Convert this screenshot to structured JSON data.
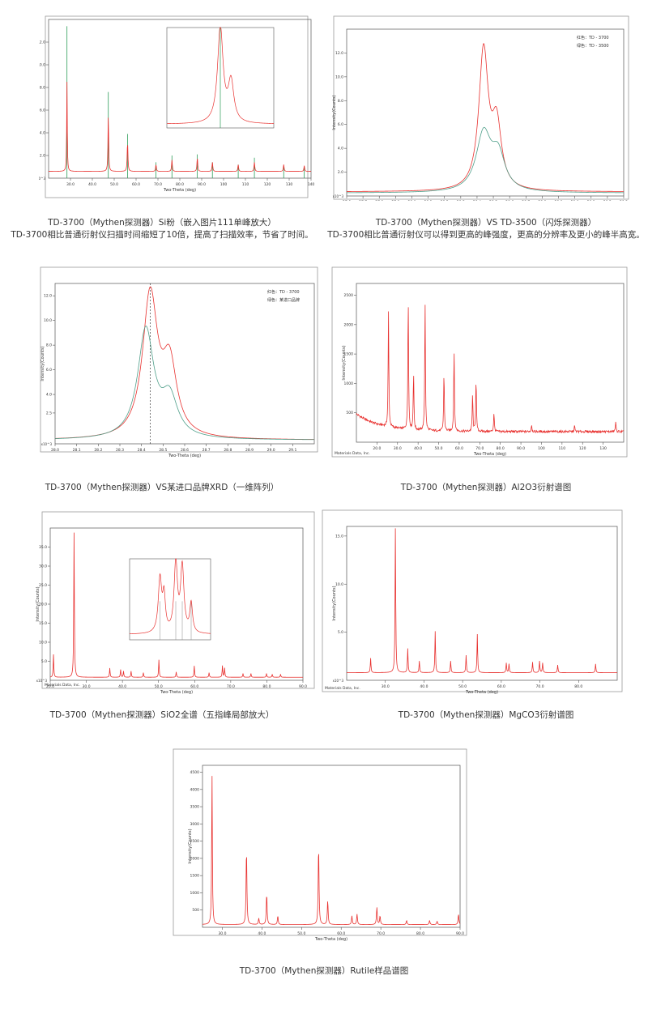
{
  "captions": {
    "p1": {
      "line1": "TD-3700（Mythen探测器）Si粉（嵌入图片111单峰放大）",
      "line2": "TD-3700相比普通衍射仪扫描时间缩短了10倍，提高了扫描效率，节省了时间。"
    },
    "p2": {
      "line1": "TD-3700（Mythen探测器）VS TD-3500（闪烁探测器）",
      "line2": "TD-3700相比普通衍射仪可以得到更高的峰强度，更高的分辨率及更小的峰半高宽。"
    },
    "p3": {
      "line1": "TD-3700（Mythen探测器）VS某进口品牌XRD（一维阵列）"
    },
    "p4": {
      "line1": "TD-3700（Mythen探测器）Al2O3衍射谱图"
    },
    "p5": {
      "line1": "TD-3700（Mythen探测器）SiO2全谱（五指峰局部放大）"
    },
    "p6": {
      "line1": "TD-3700（Mythen探测器）MgCO3衍射谱图"
    },
    "p7": {
      "line1": "TD-3700（Mythen探测器）Rutile样品谱图"
    }
  },
  "colors": {
    "red": "#e8312f",
    "green": "#2e9e5a",
    "teal": "#4f9f8a",
    "axis": "#555555",
    "frame": "#9a9a9a"
  },
  "chart_data": [
    {
      "id": "p1",
      "type": "line",
      "xlabel": "Two-Theta (deg)",
      "ylabel": "Intensity(Counts)",
      "y_multiplier": "x10^3",
      "ylim": [
        0,
        14
      ],
      "xlim": [
        20,
        140
      ],
      "xticks": [
        30,
        40,
        50,
        60,
        70,
        80,
        90,
        100,
        110,
        120,
        130,
        140
      ],
      "yticks": [
        2.0,
        4.0,
        6.0,
        8.0,
        10.0,
        12.0
      ],
      "series": [
        {
          "color": "#e8312f",
          "baseline": 0.6,
          "peaks": [
            [
              28.4,
              7.9,
              0.15
            ],
            [
              47.3,
              5.0,
              0.18
            ],
            [
              56.1,
              2.6,
              0.2
            ],
            [
              69.1,
              0.6,
              0.2
            ],
            [
              76.4,
              1.0,
              0.2
            ],
            [
              88.0,
              1.2,
              0.2
            ],
            [
              94.9,
              0.8,
              0.2
            ],
            [
              106.7,
              0.6,
              0.2
            ],
            [
              114.1,
              0.8,
              0.2
            ],
            [
              127.5,
              0.6,
              0.2
            ],
            [
              136.9,
              0.5,
              0.2
            ]
          ]
        }
      ],
      "ref_lines": {
        "color": "#2e9e5a",
        "positions": [
          28.4,
          47.3,
          56.1,
          69.1,
          76.4,
          88.0,
          94.9,
          106.7,
          114.1,
          127.5,
          136.9
        ],
        "heights": [
          13.4,
          7.6,
          3.9,
          1.4,
          2.0,
          2.1,
          1.4,
          1.2,
          1.8,
          1.0,
          0.9
        ]
      },
      "inset": {
        "type": "line",
        "xlim": [
          28.0,
          28.8
        ],
        "ylim": [
          0,
          1.05
        ],
        "peaks": [
          [
            28.4,
            1.0,
            0.025
          ],
          [
            28.48,
            0.42,
            0.025
          ]
        ],
        "baseline": 0.04,
        "ref_line": 28.4
      }
    },
    {
      "id": "p2",
      "type": "line",
      "xlabel": "Two-Theta (deg)",
      "ylabel": "Intensity(Counts)",
      "y_multiplier": "x10^3",
      "xlim": [
        27.6,
        29.3
      ],
      "ylim": [
        0,
        14
      ],
      "xticks": [
        27.6,
        27.7,
        27.8,
        27.9,
        28.0,
        28.1,
        28.2,
        28.3,
        28.4,
        28.5,
        28.6,
        28.7,
        28.8,
        28.9,
        29.0,
        29.1,
        29.2,
        29.3
      ],
      "yticks": [
        2.0,
        4.0,
        6.0,
        8.0,
        10.0,
        12.0
      ],
      "legend": {
        "line1": "红色：TD - 3700",
        "line2": "绿色：TD - 3500",
        "placement": "top-right"
      },
      "series": [
        {
          "color": "#e8312f",
          "baseline": 0.35,
          "peaks": [
            [
              28.44,
              11.6,
              0.035
            ],
            [
              28.52,
              5.2,
              0.035
            ]
          ]
        },
        {
          "color": "#4f9f8a",
          "baseline": 0.25,
          "peaks": [
            [
              28.44,
              4.8,
              0.055
            ],
            [
              28.53,
              2.9,
              0.05
            ]
          ]
        }
      ]
    },
    {
      "id": "p3",
      "type": "line",
      "xlabel": "Two-Theta (deg)",
      "ylabel": "Intensity(Counts)",
      "y_multiplier": "x10^3",
      "xlim": [
        28.0,
        29.2
      ],
      "ylim": [
        0,
        13
      ],
      "xticks": [
        28.0,
        28.1,
        28.2,
        28.3,
        28.4,
        28.5,
        28.6,
        28.7,
        28.8,
        28.9,
        29.0,
        29.1
      ],
      "yticks": [
        2.5,
        4.0,
        6.0,
        8.0,
        10.0,
        12.0
      ],
      "legend": {
        "line1": "红色：TD - 3700",
        "line2": "绿色：某进口品牌",
        "placement": "top-right"
      },
      "series": [
        {
          "color": "#e8312f",
          "baseline": 0.3,
          "peaks": [
            [
              28.44,
              11.5,
              0.042
            ],
            [
              28.53,
              5.6,
              0.04
            ]
          ]
        },
        {
          "color": "#4f9f8a",
          "baseline": 0.3,
          "peaks": [
            [
              28.42,
              8.8,
              0.045
            ],
            [
              28.53,
              3.1,
              0.045
            ]
          ]
        }
      ],
      "ref_line": 28.44
    },
    {
      "id": "p4",
      "type": "line",
      "xlabel": "Two-Theta (deg)",
      "ylabel": "Intensity(Counts)",
      "footer": "Materials Data, Inc.",
      "xlim": [
        10,
        140
      ],
      "ylim": [
        0,
        2700
      ],
      "xticks": [
        20,
        30,
        40,
        50,
        60,
        70,
        80,
        90,
        100,
        110,
        120,
        130
      ],
      "yticks": [
        500,
        1000,
        1500,
        2000,
        2500
      ],
      "series": [
        {
          "color": "#e8312f",
          "baseline": 180,
          "noise": 40,
          "decay": 300,
          "peaks": [
            [
              25.6,
              1950,
              0.2
            ],
            [
              35.2,
              2260,
              0.2
            ],
            [
              37.8,
              980,
              0.2
            ],
            [
              43.4,
              2190,
              0.2
            ],
            [
              52.6,
              1000,
              0.2
            ],
            [
              57.5,
              1400,
              0.2
            ],
            [
              66.5,
              630,
              0.2
            ],
            [
              68.2,
              900,
              0.2
            ],
            [
              76.9,
              320,
              0.2
            ],
            [
              95.2,
              120,
              0.2
            ],
            [
              116.1,
              100,
              0.2
            ],
            [
              136.1,
              160,
              0.2
            ]
          ]
        }
      ]
    },
    {
      "id": "p5",
      "type": "line",
      "xlabel": "Two-Theta (deg)",
      "ylabel": "Intensity(Counts)",
      "y_multiplier": "x10^3",
      "footer": "Materials Data, Inc.",
      "xlim": [
        20,
        90
      ],
      "ylim": [
        0,
        40
      ],
      "xticks": [
        20,
        30,
        40,
        50,
        60,
        70,
        80,
        90
      ],
      "yticks": [
        5.0,
        10.0,
        15.0,
        20.0,
        25.0,
        30.0,
        35.0
      ],
      "series": [
        {
          "color": "#e8312f",
          "baseline": 0.8,
          "peaks": [
            [
              20.9,
              6.0,
              0.1
            ],
            [
              26.6,
              38.0,
              0.1
            ],
            [
              36.5,
              2.4,
              0.1
            ],
            [
              39.5,
              2.0,
              0.1
            ],
            [
              40.3,
              1.6,
              0.1
            ],
            [
              42.4,
              1.6,
              0.1
            ],
            [
              45.8,
              1.2,
              0.1
            ],
            [
              50.1,
              4.6,
              0.1
            ],
            [
              54.9,
              1.4,
              0.1
            ],
            [
              59.9,
              3.0,
              0.1
            ],
            [
              64.0,
              1.2,
              0.1
            ],
            [
              67.7,
              3.0,
              0.1
            ],
            [
              68.3,
              2.4,
              0.1
            ],
            [
              73.4,
              1.0,
              0.1
            ],
            [
              75.6,
              1.0,
              0.1
            ],
            [
              79.9,
              1.0,
              0.1
            ],
            [
              81.5,
              0.8,
              0.1
            ],
            [
              83.8,
              0.8,
              0.1
            ]
          ]
        }
      ],
      "inset": {
        "type": "line",
        "xlim": [
          67.0,
          69.0
        ],
        "ylim": [
          0,
          1.05
        ],
        "baseline": 0.07,
        "peaks": [
          [
            67.75,
            0.7,
            0.05
          ],
          [
            67.85,
            0.45,
            0.04
          ],
          [
            68.14,
            0.9,
            0.05
          ],
          [
            68.3,
            0.85,
            0.05
          ],
          [
            68.52,
            0.38,
            0.04
          ]
        ],
        "ref_lines": [
          67.75,
          68.14,
          68.3,
          68.52
        ]
      }
    },
    {
      "id": "p6",
      "type": "line",
      "xlabel": "Two-Theta (deg)",
      "ylabel": "Intensity(Counts)",
      "y_multiplier": "x10^3",
      "footer": "Materials Data, Inc.",
      "xlim": [
        20,
        90
      ],
      "ylim": [
        0,
        16
      ],
      "xticks": [
        30,
        40,
        50,
        60,
        70,
        80
      ],
      "yticks": [
        5.0,
        10.0,
        15.0
      ],
      "series": [
        {
          "color": "#e8312f",
          "baseline": 0.8,
          "peaks": [
            [
              26.2,
              1.5,
              0.1
            ],
            [
              32.6,
              15.0,
              0.1
            ],
            [
              35.8,
              2.5,
              0.1
            ],
            [
              38.8,
              1.2,
              0.1
            ],
            [
              42.9,
              4.3,
              0.1
            ],
            [
              46.9,
              1.2,
              0.1
            ],
            [
              50.9,
              1.8,
              0.1
            ],
            [
              53.8,
              4.0,
              0.1
            ],
            [
              61.3,
              1.0,
              0.1
            ],
            [
              62.0,
              0.9,
              0.1
            ],
            [
              68.1,
              1.1,
              0.1
            ],
            [
              69.9,
              1.2,
              0.1
            ],
            [
              70.7,
              1.0,
              0.1
            ],
            [
              74.6,
              0.8,
              0.1
            ],
            [
              84.4,
              0.9,
              0.1
            ]
          ]
        }
      ]
    },
    {
      "id": "p7",
      "type": "line",
      "xlabel": "Two-Theta (deg)",
      "ylabel": "Intensity(Counts)",
      "xlim": [
        25,
        90
      ],
      "ylim": [
        0,
        4700
      ],
      "xticks": [
        30,
        40,
        50,
        60,
        70,
        80,
        90
      ],
      "yticks": [
        500,
        1000,
        1500,
        2000,
        2500,
        3000,
        3500,
        4000,
        4500
      ],
      "series": [
        {
          "color": "#e8312f",
          "baseline": 80,
          "peaks": [
            [
              27.4,
              4400,
              0.1
            ],
            [
              36.1,
              2200,
              0.12
            ],
            [
              39.2,
              180,
              0.12
            ],
            [
              41.2,
              900,
              0.12
            ],
            [
              44.0,
              250,
              0.12
            ],
            [
              54.3,
              2300,
              0.12
            ],
            [
              56.6,
              700,
              0.12
            ],
            [
              62.7,
              250,
              0.12
            ],
            [
              64.0,
              300,
              0.12
            ],
            [
              69.0,
              500,
              0.12
            ],
            [
              69.8,
              250,
              0.12
            ],
            [
              76.5,
              120,
              0.12
            ],
            [
              82.3,
              120,
              0.12
            ],
            [
              84.2,
              100,
              0.12
            ],
            [
              89.6,
              300,
              0.12
            ]
          ]
        }
      ]
    }
  ]
}
